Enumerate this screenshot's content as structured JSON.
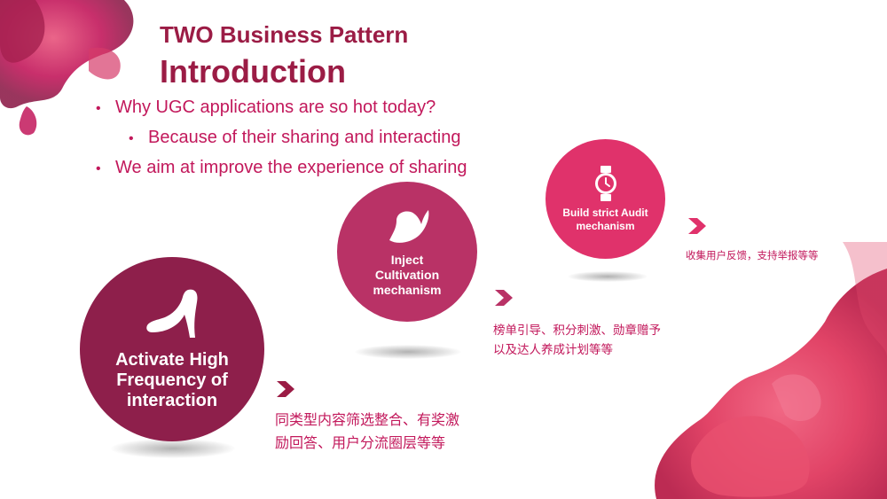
{
  "slide": {
    "title_line1": "TWO Business Pattern",
    "title_line2": "Introduction"
  },
  "bullets": [
    {
      "text": "Why UGC applications are so hot today?",
      "level": 1
    },
    {
      "text": "Because of their sharing and interacting",
      "level": 2
    },
    {
      "text": "We aim at improve the experience of sharing",
      "level": 1
    }
  ],
  "circles": [
    {
      "icon": "high-heel-shoe-icon",
      "label": "Activate High Frequency of interaction"
    },
    {
      "icon": "hat-icon",
      "label": "Inject Cultivation mechanism"
    },
    {
      "icon": "watch-icon",
      "label": "Build strict Audit mechanism"
    }
  ],
  "descriptions": [
    "同类型内容筛选整合、有奖激\n励回答、用户分流圈层等等",
    "榜单引导、积分刺激、勋章赠予\n以及达人养成计划等等",
    "收集用户反馈，支持举报等等"
  ],
  "colors": {
    "title": "#9b1c45",
    "text": "#c2185b",
    "circle_1": "#8e1f4b",
    "circle_2": "#b93266",
    "circle_3": "#e0326b"
  }
}
